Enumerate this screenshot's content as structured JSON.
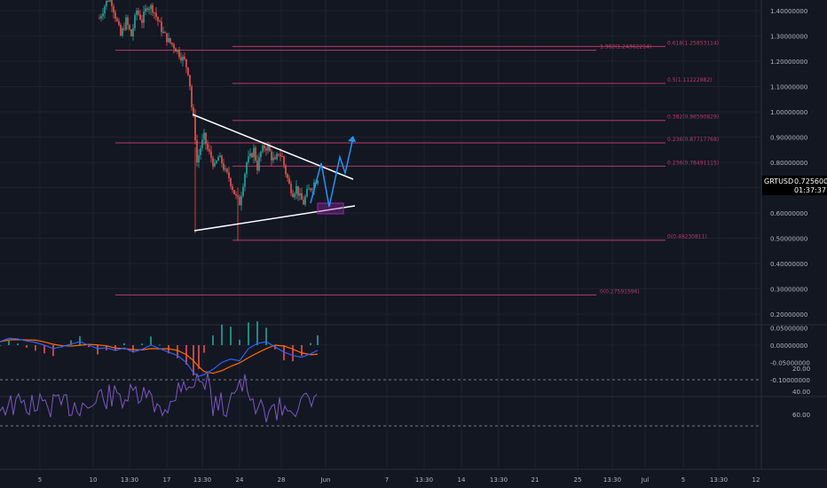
{
  "symbol": "GRTUSD",
  "colors": {
    "background": "#131722",
    "grid": "#1e2230",
    "up": "#26a69a",
    "down": "#ef5350",
    "fib": "#b83a6a",
    "trendline": "#ffffff",
    "projection": "#2196f3",
    "macd_line": "#2962ff",
    "signal_line": "#ff6d00",
    "rsi_line": "#7e57c2",
    "rsi_band": "#2a1d3f",
    "label_bg": "#000000"
  },
  "price_axis": {
    "ticks": [
      "1.40000000",
      "1.30000000",
      "1.20000000",
      "1.10000000",
      "1.00000000",
      "0.90000000",
      "0.80000000",
      "0.70000000",
      "0.60000000",
      "0.50000000",
      "0.40000000",
      "0.30000000",
      "0.20000000"
    ],
    "range": [
      0.16,
      1.44
    ],
    "current_price": "0.72560000",
    "countdown": "01:37:37"
  },
  "fib_labels": [
    {
      "text": "0.618(1.25853114)",
      "level": 1.2585
    },
    {
      "text": "1.382(1.24362214)",
      "level": 1.2436
    },
    {
      "text": "0.5(1.11222882)",
      "level": 1.1122
    },
    {
      "text": "0.382(0.96590829)",
      "level": 0.9659
    },
    {
      "text": "0.236(0.87717768)",
      "level": 0.8772
    },
    {
      "text": "0.236(0.78491115)",
      "level": 0.7849
    },
    {
      "text": "0(0.49230811)",
      "level": 0.4923
    },
    {
      "text": "0(0.27591596)",
      "level": 0.2759
    }
  ],
  "macd_axis": {
    "ticks": [
      "0.05000000",
      "0.00000000",
      "-0.05000000",
      "-0.10000000"
    ]
  },
  "rsi_axis": {
    "ticks": [
      "60.00",
      "40.00",
      "20.00"
    ],
    "upper": 70,
    "lower": 30
  },
  "time_axis": [
    "5",
    "10",
    "13:30",
    "17",
    "13:30",
    "24",
    "28",
    "Jun",
    "7",
    "13:30",
    "14",
    "13:30",
    "21",
    "25",
    "13:30",
    "Jul",
    "5",
    "13:30",
    "12"
  ],
  "chart_data": {
    "type": "candlestick",
    "price_ticks": [
      1.4,
      1.3,
      1.2,
      1.1,
      1.0,
      0.9,
      0.8,
      0.7,
      0.6,
      0.5,
      0.4,
      0.3,
      0.2
    ],
    "fib_levels": [
      1.2585,
      1.2436,
      1.1122,
      0.9659,
      0.8772,
      0.7849,
      0.4923,
      0.2759
    ],
    "last_price": 0.7256,
    "macd_ticks": [
      0.05,
      0,
      -0.05,
      -0.1
    ],
    "rsi_ticks": [
      60,
      40,
      20
    ],
    "rsi_bands": [
      70,
      30
    ]
  }
}
